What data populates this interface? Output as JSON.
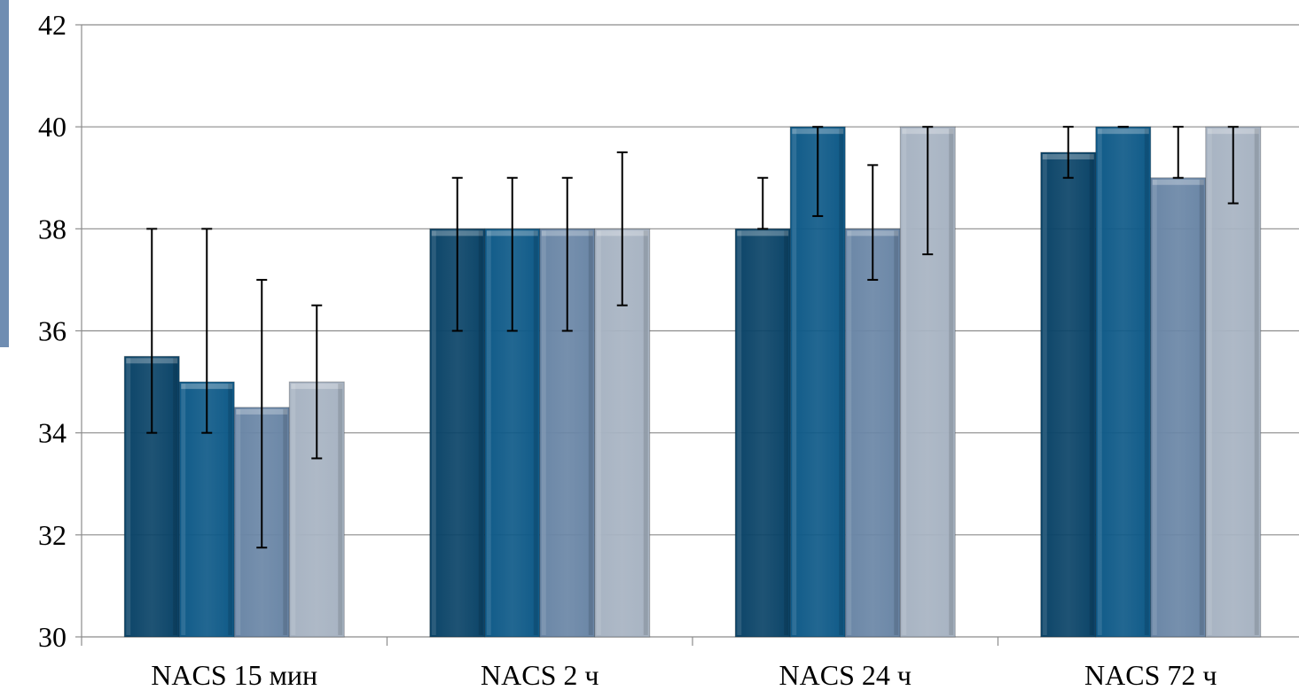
{
  "chart_data": {
    "type": "bar",
    "title": "",
    "xlabel": "",
    "ylabel": "",
    "ylim": [
      30,
      42
    ],
    "yticks": [
      30,
      32,
      34,
      36,
      38,
      40,
      42
    ],
    "grid": true,
    "legend": "none",
    "categories": [
      "NACS 15 мин",
      "NACS 2 ч",
      "NACS 24 ч",
      "NACS 72 ч"
    ],
    "series": [
      {
        "values": [
          35.5,
          38,
          38,
          39.5
        ],
        "error_low": [
          34,
          36,
          38,
          39
        ],
        "error_high": [
          38,
          39,
          39,
          40
        ],
        "color": "#0b4468"
      },
      {
        "values": [
          35,
          38,
          40,
          40
        ],
        "error_low": [
          34,
          36,
          38.25,
          40
        ],
        "error_high": [
          38,
          39,
          40,
          40
        ],
        "color": "#0f5a88"
      },
      {
        "values": [
          34.5,
          38,
          38,
          39
        ],
        "error_low": [
          31.75,
          36,
          37,
          39
        ],
        "error_high": [
          37,
          39,
          39.25,
          40
        ],
        "color": "#6a86a6"
      },
      {
        "values": [
          35,
          38,
          40,
          40
        ],
        "error_low": [
          33.5,
          36.5,
          37.5,
          38.5
        ],
        "error_high": [
          36.5,
          39.5,
          40,
          40
        ],
        "color": "#a7b3c2"
      }
    ]
  }
}
